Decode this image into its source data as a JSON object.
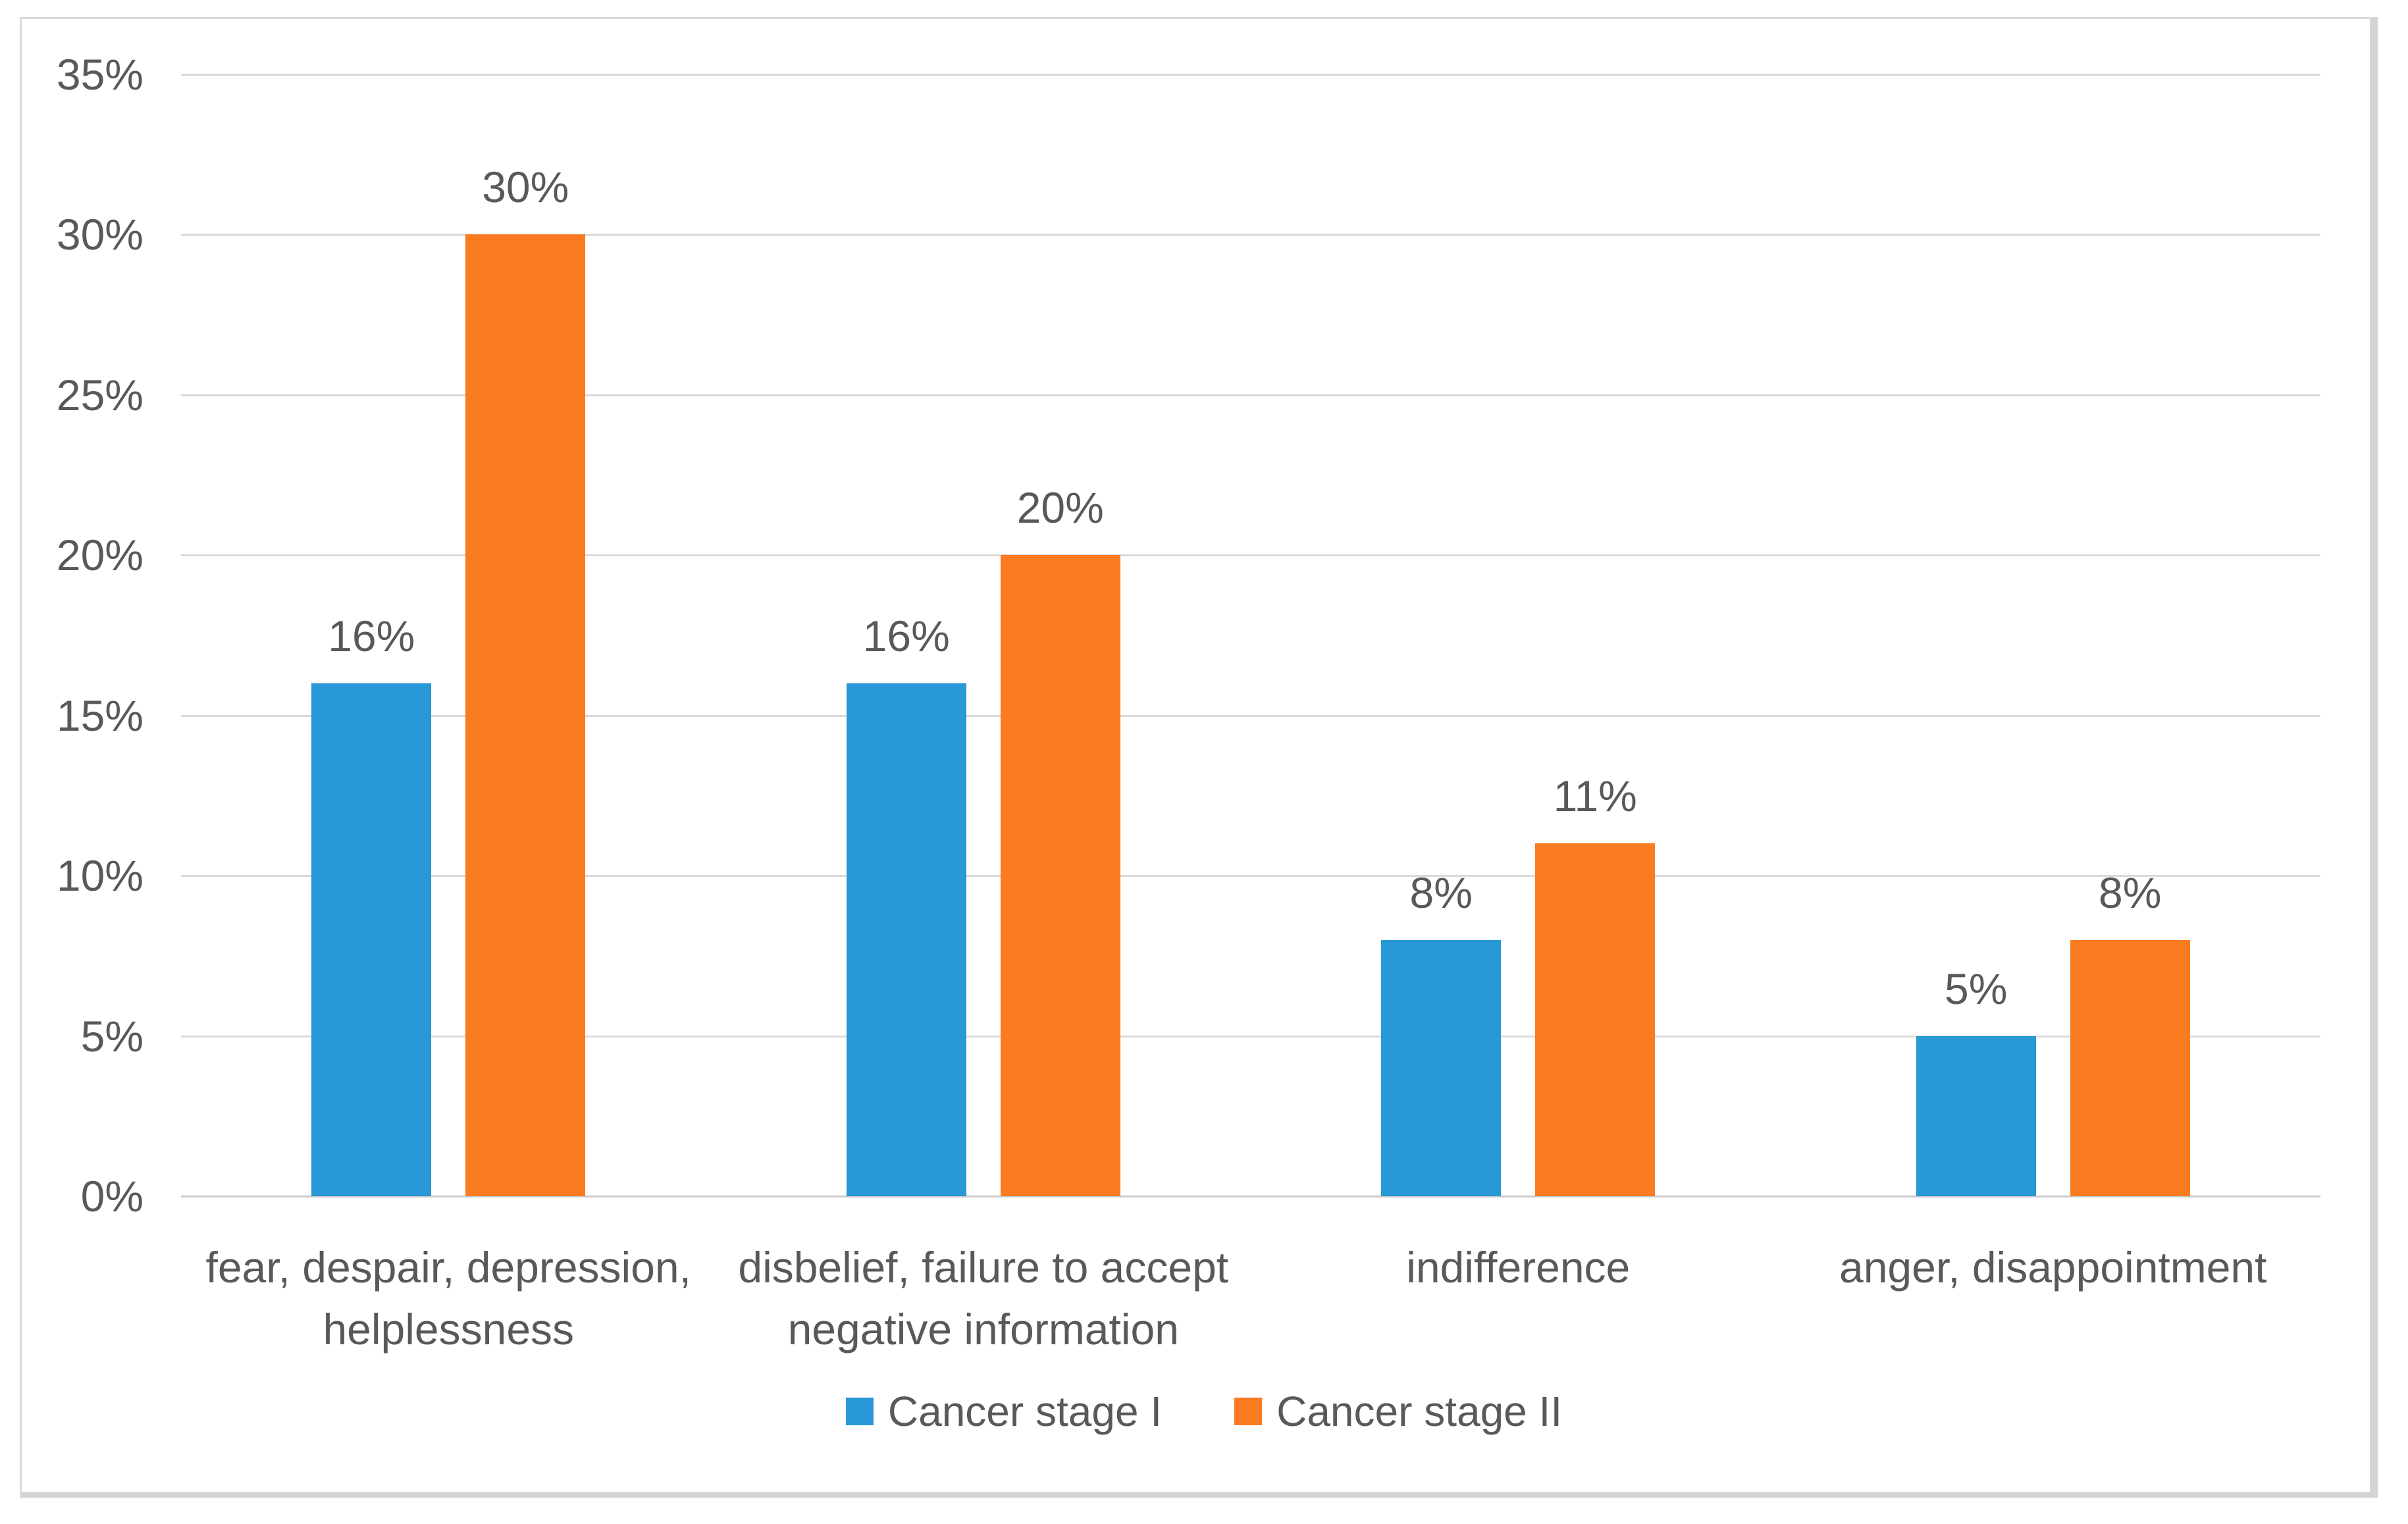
{
  "figure": {
    "background_color": "#ffffff",
    "frame_border_color": "#d9d9d9",
    "gridline_color": "#dadada",
    "axis_line_color": "#c9c9c9",
    "text_color": "#595959"
  },
  "chart_data": {
    "type": "bar",
    "title": "",
    "orientation": "vertical-grouped",
    "categories": [
      "fear, despair, depression, helplessness",
      "disbelief, failure to accept negative information",
      "indifference",
      "anger, disappointment"
    ],
    "series": [
      {
        "name": "Cancer stage I",
        "color": "#2898d6",
        "values": [
          16,
          16,
          8,
          5
        ],
        "labels": [
          "16%",
          "16%",
          "8%",
          "5%"
        ]
      },
      {
        "name": "Cancer stage II",
        "color": "#fb7b21",
        "values": [
          30,
          20,
          11,
          8
        ],
        "labels": [
          "30%",
          "20%",
          "11%",
          "8%"
        ]
      }
    ],
    "y_axis": {
      "min": 0,
      "max": 35,
      "tick_step": 5,
      "tick_labels": [
        "0%",
        "5%",
        "10%",
        "15%",
        "20%",
        "25%",
        "30%",
        "35%"
      ]
    },
    "xlabel": "",
    "ylabel": "",
    "grid": "horizontal",
    "data_labels": "outside-end",
    "legend_position": "bottom-center"
  }
}
